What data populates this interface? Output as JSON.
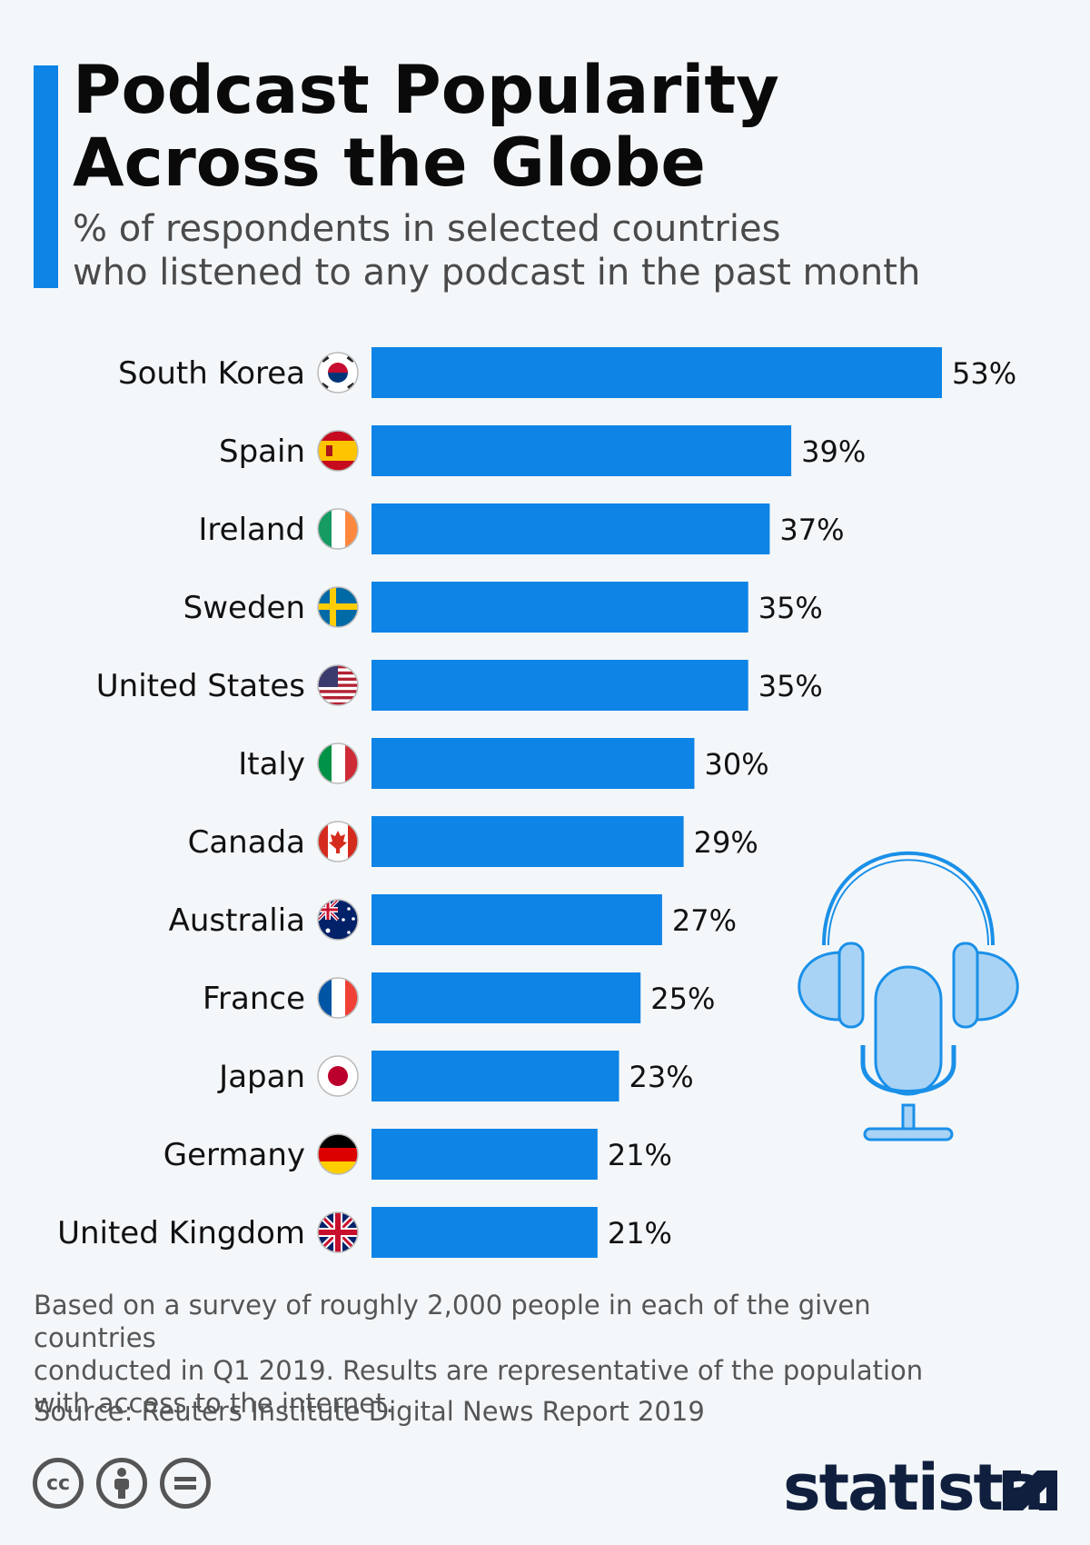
{
  "header": {
    "title_line1": "Podcast Popularity",
    "title_line2": "Across the Globe",
    "subtitle_line1": "% of respondents in selected countries",
    "subtitle_line2": "who listened to any podcast in the past month"
  },
  "chart_data": {
    "type": "bar",
    "orientation": "horizontal",
    "categories": [
      "South Korea",
      "Spain",
      "Ireland",
      "Sweden",
      "United States",
      "Italy",
      "Canada",
      "Australia",
      "France",
      "Japan",
      "Germany",
      "United Kingdom"
    ],
    "values": [
      53,
      39,
      37,
      35,
      35,
      30,
      29,
      27,
      25,
      23,
      21,
      21
    ],
    "value_labels": [
      "53%",
      "39%",
      "37%",
      "35%",
      "35%",
      "30%",
      "29%",
      "27%",
      "25%",
      "23%",
      "21%",
      "21%"
    ],
    "unit": "%",
    "xlim": [
      0,
      53
    ],
    "bar_color": "#0e84e6",
    "legend": "none",
    "grid": false
  },
  "footer": {
    "note_line1": "Based on a survey of roughly 2,000 people in each of the given countries",
    "note_line2": "conducted in Q1 2019. Results are representative of the population",
    "note_line3": "with access to the internet.",
    "source": "Source: Reuters Institute Digital News Report 2019",
    "brand": "statista",
    "license_icons": [
      "cc-icon",
      "attribution-icon",
      "no-derivatives-icon"
    ]
  },
  "colors": {
    "accent": "#0e84e6",
    "illustration": "#a9d3f5",
    "illustration_stroke": "#1a90e8",
    "brand": "#0f1f3d"
  }
}
